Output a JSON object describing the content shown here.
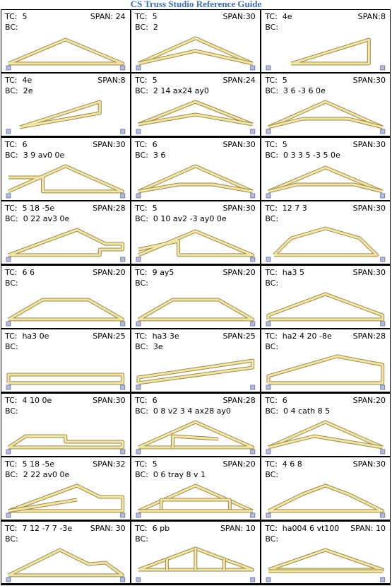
{
  "header": {
    "title": "CS Truss Studio Reference Guide"
  },
  "cells": [
    {
      "tc": "TC:  5",
      "span": "SPAN: 24",
      "bc": "BC:"
    },
    {
      "tc": "TC:  5",
      "span": "SPAN:30",
      "bc": "BC:  2"
    },
    {
      "tc": "TC:  4e",
      "span": "SPAN:8",
      "bc": "BC:"
    },
    {
      "tc": "TC:  4e",
      "span": "SPAN:8",
      "bc": "BC:  2e"
    },
    {
      "tc": "TC:  5",
      "span": "SPAN:24",
      "bc": "BC:  2 14 ax24 ay0"
    },
    {
      "tc": "TC:  5",
      "span": "SPAN:30",
      "bc": "BC:  3 6 -3 6 0e"
    },
    {
      "tc": "TC:  6",
      "span": "SPAN:30",
      "bc": "BC:  3 9 av0 0e"
    },
    {
      "tc": "TC:  6",
      "span": "SPAN:30",
      "bc": "BC:  3 6"
    },
    {
      "tc": "TC:  5",
      "span": "SPAN:30",
      "bc": "BC:  0 3 3 5 -3 5 0e"
    },
    {
      "tc": "TC:  5 18 -5e",
      "span": "SPAN:28",
      "bc": "BC:  0 22 av3 0e"
    },
    {
      "tc": "TC:  5",
      "span": "SPAN:30",
      "bc": "BC:  0 10 av2 -3 ay0 0e"
    },
    {
      "tc": "TC:  12 7 3",
      "span": "SPAN:30",
      "bc": "BC:"
    },
    {
      "tc": "TC:  6 6",
      "span": "SPAN:20",
      "bc": "BC:"
    },
    {
      "tc": "TC:  9 ay5",
      "span": "SPAN:20",
      "bc": "BC:"
    },
    {
      "tc": "TC:  ha3 5",
      "span": "SPAN:30",
      "bc": "BC:"
    },
    {
      "tc": "TC:  ha3 0e",
      "span": "SPAN:25",
      "bc": "BC:"
    },
    {
      "tc": "TC:  ha3 3e",
      "span": "SPAN:25",
      "bc": "BC:  3e"
    },
    {
      "tc": "TC:  ha2 4 20 -8e",
      "span": "SPAN:28",
      "bc": "BC:"
    },
    {
      "tc": "TC:  4 10 0e",
      "span": "SPAN:30",
      "bc": "BC:"
    },
    {
      "tc": "TC:  6",
      "span": "SPAN:28",
      "bc": "BC:  0 8 v2 3 4 ax28 ay0"
    },
    {
      "tc": "TC:  6",
      "span": "SPAN:20",
      "bc": "BC:  0 4 cath 8 5"
    },
    {
      "tc": "TC:  5 18 -5e",
      "span": "SPAN:32",
      "bc": "BC:  2 22 av0 0e"
    },
    {
      "tc": "TC:  5",
      "span": "SPAN:20",
      "bc": "BC:  0 6 tray 8 v 1"
    },
    {
      "tc": "TC:  4 6 8",
      "span": "SPAN:30",
      "bc": "BC:"
    },
    {
      "tc": "TC:  7 12 -7 7 -3e",
      "span": "SPAN: 30",
      "bc": "BC:"
    },
    {
      "tc": "TC:  6 pb",
      "span": "SPAN: 10",
      "bc": "BC:"
    },
    {
      "tc": "TC:  ha004 6 vt100",
      "span": "SPAN: 10",
      "bc": "BC:"
    }
  ]
}
